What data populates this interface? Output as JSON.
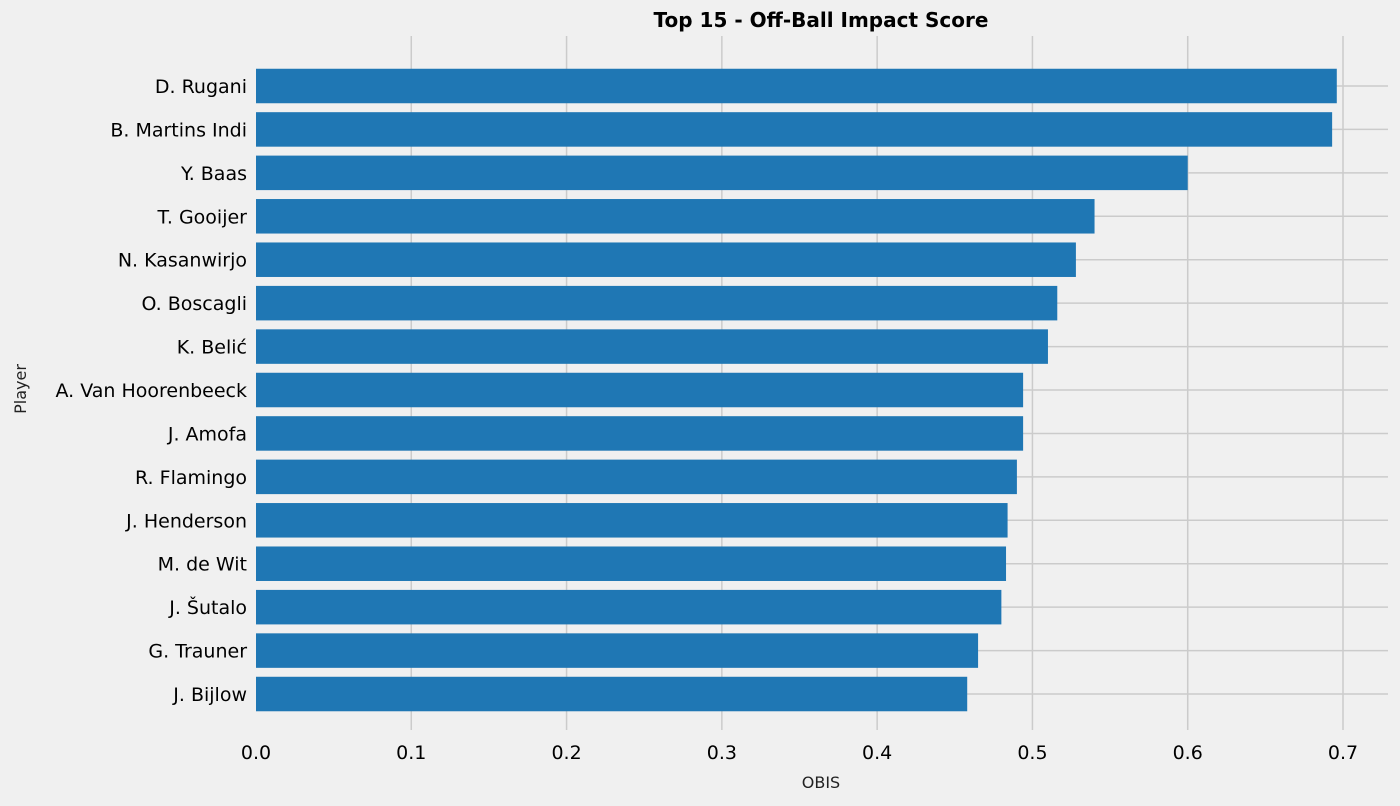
{
  "chart_data": {
    "type": "bar",
    "orientation": "horizontal",
    "title": "Top 15 - Off-Ball Impact Score",
    "xlabel": "OBIS",
    "ylabel": "Player",
    "categories": [
      "D. Rugani",
      "B. Martins Indi",
      "Y. Baas",
      "T. Gooijer",
      "N. Kasanwirjo",
      "O. Boscagli",
      "K. Belić",
      "A. Van Hoorenbeeck",
      "J. Amofa",
      "R. Flamingo",
      "J. Henderson",
      "M. de Wit",
      "J. Šutalo",
      "G. Trauner",
      "J. Bijlow"
    ],
    "values": [
      0.696,
      0.693,
      0.6,
      0.54,
      0.528,
      0.516,
      0.51,
      0.494,
      0.494,
      0.49,
      0.484,
      0.483,
      0.48,
      0.465,
      0.458
    ],
    "xlim": [
      0,
      0.72
    ],
    "xticks": [
      "0.0",
      "0.1",
      "0.2",
      "0.3",
      "0.4",
      "0.5",
      "0.6",
      "0.7"
    ],
    "grid": true,
    "bar_color": "#1f77b4",
    "background_color": "#f0f0f0",
    "grid_color": "#cbcbcb"
  }
}
